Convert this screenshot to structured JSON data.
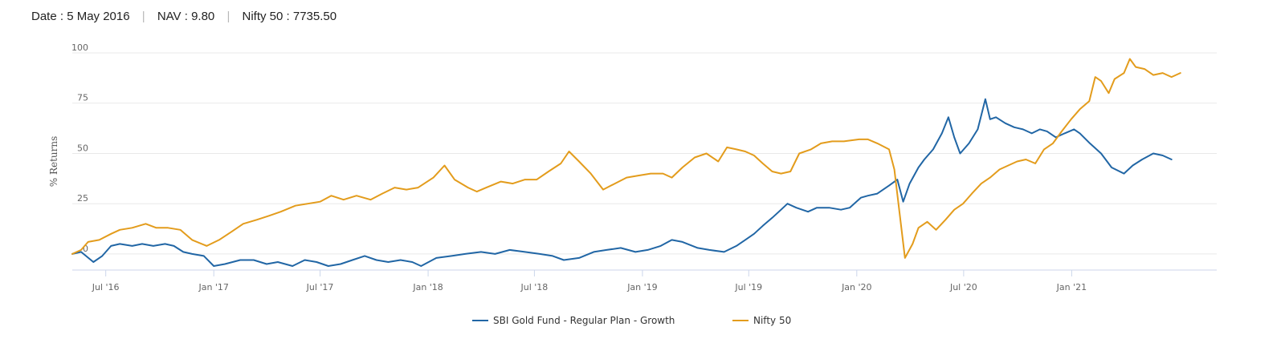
{
  "header": {
    "date_label": "Date : ",
    "date_value": "5 May 2016",
    "nav_label": "NAV : ",
    "nav_value": "9.80",
    "index_label": "Nifty 50 : ",
    "index_value": "7735.50",
    "separator": "|"
  },
  "chart_data": {
    "type": "line",
    "xlabel": "",
    "ylabel": "% Returns",
    "ylim": [
      -8,
      100
    ],
    "yticks": [
      0,
      25,
      50,
      75,
      100
    ],
    "xlim": [
      "2016-05-05",
      "2021-09-05"
    ],
    "xticks": [
      {
        "date": "2016-07-01",
        "label": "Jul '16"
      },
      {
        "date": "2017-01-01",
        "label": "Jan '17"
      },
      {
        "date": "2017-07-01",
        "label": "Jul '17"
      },
      {
        "date": "2018-01-01",
        "label": "Jan '18"
      },
      {
        "date": "2018-07-01",
        "label": "Jul '18"
      },
      {
        "date": "2019-01-01",
        "label": "Jan '19"
      },
      {
        "date": "2019-07-01",
        "label": "Jul '19"
      },
      {
        "date": "2020-01-01",
        "label": "Jan '20"
      },
      {
        "date": "2020-07-01",
        "label": "Jul '20"
      },
      {
        "date": "2021-01-01",
        "label": "Jan '21"
      }
    ],
    "grid": true,
    "legend_position": "bottom",
    "series": [
      {
        "name": "SBI Gold Fund - Regular Plan - Growth",
        "color": "#2166a5",
        "points": [
          [
            "2016-05-05",
            0
          ],
          [
            "2016-05-20",
            1
          ],
          [
            "2016-06-10",
            -4
          ],
          [
            "2016-06-25",
            -1
          ],
          [
            "2016-07-10",
            4
          ],
          [
            "2016-07-25",
            5
          ],
          [
            "2016-08-15",
            4
          ],
          [
            "2016-09-01",
            5
          ],
          [
            "2016-09-20",
            4
          ],
          [
            "2016-10-10",
            5
          ],
          [
            "2016-10-25",
            4
          ],
          [
            "2016-11-10",
            1
          ],
          [
            "2016-11-25",
            0
          ],
          [
            "2016-12-15",
            -1
          ],
          [
            "2017-01-01",
            -6
          ],
          [
            "2017-01-20",
            -5
          ],
          [
            "2017-02-15",
            -3
          ],
          [
            "2017-03-10",
            -3
          ],
          [
            "2017-04-01",
            -5
          ],
          [
            "2017-04-20",
            -4
          ],
          [
            "2017-05-15",
            -6
          ],
          [
            "2017-06-05",
            -3
          ],
          [
            "2017-06-25",
            -4
          ],
          [
            "2017-07-15",
            -6
          ],
          [
            "2017-08-05",
            -5
          ],
          [
            "2017-08-25",
            -3
          ],
          [
            "2017-09-15",
            -1
          ],
          [
            "2017-10-05",
            -3
          ],
          [
            "2017-10-25",
            -4
          ],
          [
            "2017-11-15",
            -3
          ],
          [
            "2017-12-05",
            -4
          ],
          [
            "2017-12-20",
            -6
          ],
          [
            "2018-01-15",
            -2
          ],
          [
            "2018-02-10",
            -1
          ],
          [
            "2018-03-05",
            0
          ],
          [
            "2018-04-01",
            1
          ],
          [
            "2018-04-25",
            0
          ],
          [
            "2018-05-20",
            2
          ],
          [
            "2018-06-15",
            1
          ],
          [
            "2018-07-10",
            0
          ],
          [
            "2018-08-01",
            -1
          ],
          [
            "2018-08-20",
            -3
          ],
          [
            "2018-09-15",
            -2
          ],
          [
            "2018-10-10",
            1
          ],
          [
            "2018-11-01",
            2
          ],
          [
            "2018-11-25",
            3
          ],
          [
            "2018-12-20",
            1
          ],
          [
            "2019-01-10",
            2
          ],
          [
            "2019-02-01",
            4
          ],
          [
            "2019-02-20",
            7
          ],
          [
            "2019-03-10",
            6
          ],
          [
            "2019-04-05",
            3
          ],
          [
            "2019-04-25",
            2
          ],
          [
            "2019-05-20",
            1
          ],
          [
            "2019-06-10",
            4
          ],
          [
            "2019-06-25",
            7
          ],
          [
            "2019-07-10",
            10
          ],
          [
            "2019-07-25",
            14
          ],
          [
            "2019-08-10",
            18
          ],
          [
            "2019-08-25",
            22
          ],
          [
            "2019-09-05",
            25
          ],
          [
            "2019-09-20",
            23
          ],
          [
            "2019-10-10",
            21
          ],
          [
            "2019-10-25",
            23
          ],
          [
            "2019-11-15",
            23
          ],
          [
            "2019-12-05",
            22
          ],
          [
            "2019-12-20",
            23
          ],
          [
            "2020-01-08",
            28
          ],
          [
            "2020-01-20",
            29
          ],
          [
            "2020-02-05",
            30
          ],
          [
            "2020-02-25",
            34
          ],
          [
            "2020-03-10",
            37
          ],
          [
            "2020-03-20",
            26
          ],
          [
            "2020-03-31",
            35
          ],
          [
            "2020-04-15",
            43
          ],
          [
            "2020-04-25",
            47
          ],
          [
            "2020-05-10",
            52
          ],
          [
            "2020-05-25",
            60
          ],
          [
            "2020-06-05",
            68
          ],
          [
            "2020-06-15",
            58
          ],
          [
            "2020-06-25",
            50
          ],
          [
            "2020-07-10",
            55
          ],
          [
            "2020-07-25",
            62
          ],
          [
            "2020-08-07",
            77
          ],
          [
            "2020-08-15",
            67
          ],
          [
            "2020-08-25",
            68
          ],
          [
            "2020-09-10",
            65
          ],
          [
            "2020-09-25",
            63
          ],
          [
            "2020-10-10",
            62
          ],
          [
            "2020-10-25",
            60
          ],
          [
            "2020-11-08",
            62
          ],
          [
            "2020-11-20",
            61
          ],
          [
            "2020-12-05",
            58
          ],
          [
            "2020-12-20",
            60
          ],
          [
            "2021-01-05",
            62
          ],
          [
            "2021-01-15",
            60
          ],
          [
            "2021-02-01",
            55
          ],
          [
            "2021-02-20",
            50
          ],
          [
            "2021-03-10",
            43
          ],
          [
            "2021-03-31",
            40
          ],
          [
            "2021-04-15",
            44
          ],
          [
            "2021-05-01",
            47
          ],
          [
            "2021-05-20",
            50
          ],
          [
            "2021-06-05",
            49
          ],
          [
            "2021-06-20",
            47
          ]
        ]
      },
      {
        "name": "Nifty 50",
        "color": "#e39c1c",
        "points": [
          [
            "2016-05-05",
            0
          ],
          [
            "2016-05-20",
            2
          ],
          [
            "2016-06-01",
            6
          ],
          [
            "2016-06-20",
            7
          ],
          [
            "2016-07-10",
            10
          ],
          [
            "2016-07-25",
            12
          ],
          [
            "2016-08-15",
            13
          ],
          [
            "2016-09-07",
            15
          ],
          [
            "2016-09-25",
            13
          ],
          [
            "2016-10-15",
            13
          ],
          [
            "2016-11-05",
            12
          ],
          [
            "2016-11-25",
            7
          ],
          [
            "2016-12-20",
            4
          ],
          [
            "2017-01-10",
            7
          ],
          [
            "2017-01-31",
            11
          ],
          [
            "2017-02-20",
            15
          ],
          [
            "2017-03-15",
            17
          ],
          [
            "2017-04-05",
            19
          ],
          [
            "2017-04-25",
            21
          ],
          [
            "2017-05-20",
            24
          ],
          [
            "2017-06-10",
            25
          ],
          [
            "2017-07-01",
            26
          ],
          [
            "2017-07-20",
            29
          ],
          [
            "2017-08-10",
            27
          ],
          [
            "2017-09-01",
            29
          ],
          [
            "2017-09-25",
            27
          ],
          [
            "2017-10-15",
            30
          ],
          [
            "2017-11-05",
            33
          ],
          [
            "2017-11-25",
            32
          ],
          [
            "2017-12-15",
            33
          ],
          [
            "2018-01-10",
            38
          ],
          [
            "2018-01-29",
            44
          ],
          [
            "2018-02-15",
            37
          ],
          [
            "2018-03-10",
            33
          ],
          [
            "2018-03-25",
            31
          ],
          [
            "2018-04-10",
            33
          ],
          [
            "2018-05-05",
            36
          ],
          [
            "2018-05-25",
            35
          ],
          [
            "2018-06-15",
            37
          ],
          [
            "2018-07-05",
            37
          ],
          [
            "2018-07-25",
            41
          ],
          [
            "2018-08-15",
            45
          ],
          [
            "2018-08-29",
            51
          ],
          [
            "2018-09-15",
            46
          ],
          [
            "2018-10-05",
            40
          ],
          [
            "2018-10-26",
            32
          ],
          [
            "2018-11-15",
            35
          ],
          [
            "2018-12-05",
            38
          ],
          [
            "2018-12-25",
            39
          ],
          [
            "2019-01-15",
            40
          ],
          [
            "2019-02-05",
            40
          ],
          [
            "2019-02-20",
            38
          ],
          [
            "2019-03-10",
            43
          ],
          [
            "2019-03-31",
            48
          ],
          [
            "2019-04-20",
            50
          ],
          [
            "2019-05-10",
            46
          ],
          [
            "2019-05-25",
            53
          ],
          [
            "2019-06-10",
            52
          ],
          [
            "2019-06-25",
            51
          ],
          [
            "2019-07-10",
            49
          ],
          [
            "2019-07-25",
            45
          ],
          [
            "2019-08-10",
            41
          ],
          [
            "2019-08-25",
            40
          ],
          [
            "2019-09-10",
            41
          ],
          [
            "2019-09-25",
            50
          ],
          [
            "2019-10-15",
            52
          ],
          [
            "2019-11-01",
            55
          ],
          [
            "2019-11-20",
            56
          ],
          [
            "2019-12-10",
            56
          ],
          [
            "2020-01-05",
            57
          ],
          [
            "2020-01-20",
            57
          ],
          [
            "2020-02-05",
            55
          ],
          [
            "2020-02-25",
            52
          ],
          [
            "2020-03-05",
            42
          ],
          [
            "2020-03-12",
            25
          ],
          [
            "2020-03-23",
            -2
          ],
          [
            "2020-04-05",
            5
          ],
          [
            "2020-04-15",
            13
          ],
          [
            "2020-04-30",
            16
          ],
          [
            "2020-05-15",
            12
          ],
          [
            "2020-05-31",
            17
          ],
          [
            "2020-06-15",
            22
          ],
          [
            "2020-06-30",
            25
          ],
          [
            "2020-07-15",
            30
          ],
          [
            "2020-07-31",
            35
          ],
          [
            "2020-08-15",
            38
          ],
          [
            "2020-08-31",
            42
          ],
          [
            "2020-09-15",
            44
          ],
          [
            "2020-09-30",
            46
          ],
          [
            "2020-10-15",
            47
          ],
          [
            "2020-10-31",
            45
          ],
          [
            "2020-11-15",
            52
          ],
          [
            "2020-11-30",
            55
          ],
          [
            "2020-12-15",
            61
          ],
          [
            "2020-12-31",
            67
          ],
          [
            "2021-01-15",
            72
          ],
          [
            "2021-01-31",
            76
          ],
          [
            "2021-02-10",
            88
          ],
          [
            "2021-02-20",
            86
          ],
          [
            "2021-03-05",
            80
          ],
          [
            "2021-03-15",
            87
          ],
          [
            "2021-03-31",
            90
          ],
          [
            "2021-04-10",
            97
          ],
          [
            "2021-04-20",
            93
          ],
          [
            "2021-05-05",
            92
          ],
          [
            "2021-05-20",
            89
          ],
          [
            "2021-06-05",
            90
          ],
          [
            "2021-06-20",
            88
          ],
          [
            "2021-07-05",
            90
          ]
        ]
      }
    ]
  }
}
